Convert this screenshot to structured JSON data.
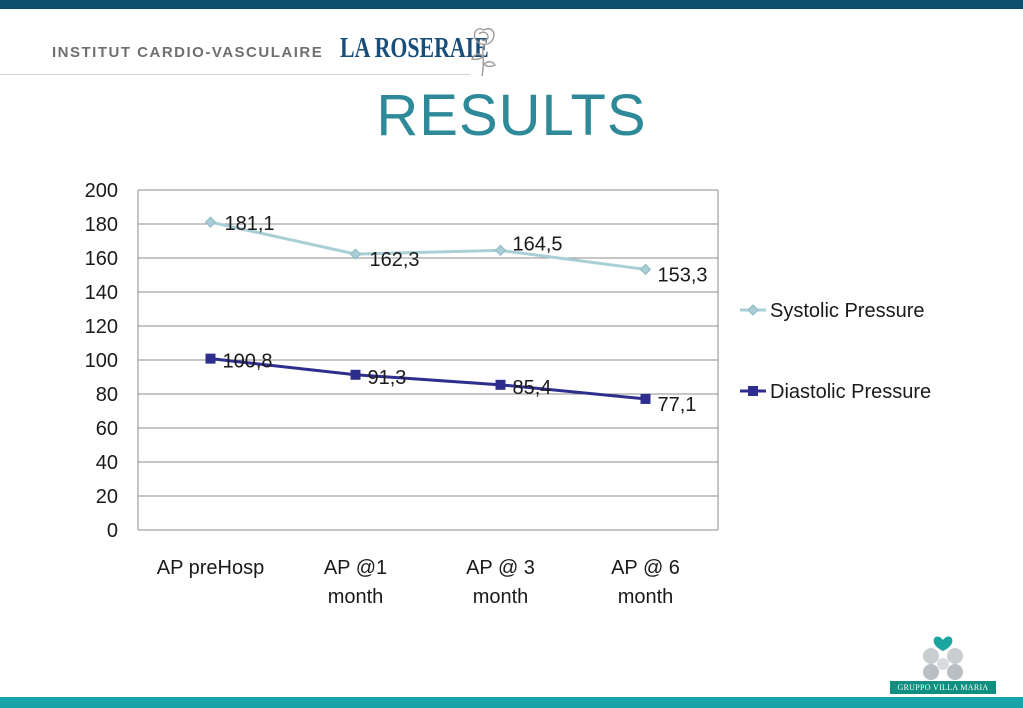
{
  "header": {
    "institute": "INSTITUT CARDIO-VASCULAIRE",
    "brand": "LA ROSERAIE",
    "title": "RESULTS"
  },
  "footer": {
    "logo_text": "GRUPPO VILLA MARIA"
  },
  "colors": {
    "top_bar": "#0f4f6e",
    "bottom_bar": "#17a3a8",
    "title": "#2e8a98",
    "systolic": "#a9cfd6",
    "diastolic": "#2e2e8f"
  },
  "chart_data": {
    "type": "line",
    "categories": [
      "AP preHosp",
      "AP @1 month",
      "AP @ 3 month",
      "AP @ 6 month"
    ],
    "category_lines": [
      [
        "AP preHosp"
      ],
      [
        "AP @1",
        "month"
      ],
      [
        "AP @ 3",
        "month"
      ],
      [
        "AP @ 6",
        "month"
      ]
    ],
    "series": [
      {
        "name": "Systolic Pressure",
        "values": [
          181.1,
          162.3,
          164.5,
          153.3
        ],
        "labels": [
          "181,1",
          "162,3",
          "164,5",
          "153,3"
        ],
        "marker": "diamond",
        "color": "#a9cfd6"
      },
      {
        "name": "Diastolic Pressure",
        "values": [
          100.8,
          91.3,
          85.4,
          77.1
        ],
        "labels": [
          "100,8",
          "91,3",
          "85,4",
          "77,1"
        ],
        "marker": "square",
        "color": "#2e2e8f"
      }
    ],
    "ylim": [
      0,
      200
    ],
    "yticks": [
      0,
      20,
      40,
      60,
      80,
      100,
      120,
      140,
      160,
      180,
      200
    ],
    "grid": true,
    "legend": "right"
  }
}
